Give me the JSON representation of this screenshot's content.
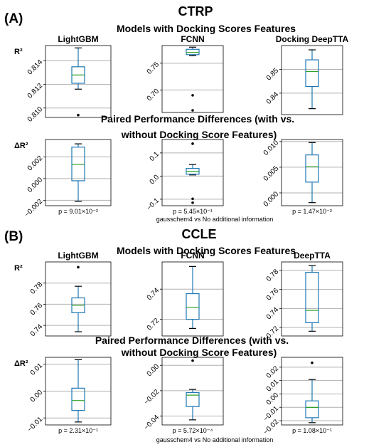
{
  "figure": {
    "sections": [
      {
        "label": "(A)",
        "dataset": "CTRP",
        "models_title": "Models with Docking Scores Features",
        "diff_title_line1": "Paired Performance Differences (with vs.",
        "diff_title_line2": "without Docking Score Features)",
        "comparison_note": "gausschem4 vs No additional information"
      },
      {
        "label": "(B)",
        "dataset": "CCLE",
        "models_title": "Models with Docking Scores Features",
        "diff_title_line1": "Paired Performance Differences (with vs.",
        "diff_title_line2": "without Docking Score Features)",
        "comparison_note": "gausschem4 vs No additional information"
      }
    ]
  },
  "chart_data": [
    {
      "type": "box",
      "section": "(A)",
      "row": "models",
      "panel_title": "LightGBM",
      "ylabel": "R²",
      "ylim": [
        0.8092,
        0.8153
      ],
      "yticks": [
        0.81,
        0.812,
        0.814
      ],
      "ytick_labels": [
        "0.810",
        "0.812",
        "0.814"
      ],
      "grid": true,
      "box": {
        "whislo": 0.8116,
        "q1": 0.8121,
        "med": 0.8128,
        "q3": 0.8135,
        "whishi": 0.8151,
        "fliers": [
          0.8094
        ]
      }
    },
    {
      "type": "box",
      "section": "(A)",
      "row": "models",
      "panel_title": "FCNN",
      "ylabel": "",
      "ylim": [
        0.658,
        0.783
      ],
      "yticks": [
        0.7,
        0.75
      ],
      "ytick_labels": [
        "0.70",
        "0.75"
      ],
      "grid": true,
      "box": {
        "whislo": 0.764,
        "q1": 0.766,
        "med": 0.77,
        "q3": 0.776,
        "whishi": 0.78,
        "fliers": [
          0.69,
          0.662
        ]
      }
    },
    {
      "type": "box",
      "section": "(A)",
      "row": "models",
      "panel_title": "Docking DeepTTA",
      "ylabel": "",
      "ylim": [
        0.831,
        0.86
      ],
      "yticks": [
        0.84,
        0.85
      ],
      "ytick_labels": [
        "0.84",
        "0.85"
      ],
      "grid": true,
      "box": {
        "whislo": 0.8335,
        "q1": 0.8428,
        "med": 0.8491,
        "q3": 0.854,
        "whishi": 0.8582,
        "fliers": []
      }
    },
    {
      "type": "box",
      "section": "(A)",
      "row": "diff",
      "panel_title": "",
      "ylabel": "ΔR²",
      "p_value": "p = 9.01×10⁻²",
      "ylim": [
        -0.0025,
        0.0036
      ],
      "yticks": [
        -0.002,
        0.0,
        0.002
      ],
      "ytick_labels": [
        "−0.002",
        "0.000",
        "0.002"
      ],
      "grid": true,
      "box": {
        "whislo": -0.0021,
        "q1": -0.0002,
        "med": 0.0013,
        "q3": 0.0029,
        "whishi": 0.0032,
        "fliers": []
      }
    },
    {
      "type": "box",
      "section": "(A)",
      "row": "diff",
      "panel_title": "",
      "ylabel": "",
      "p_value": "p = 5.45×10⁻¹",
      "ylim": [
        -0.128,
        0.158
      ],
      "yticks": [
        -0.1,
        0.0,
        0.1
      ],
      "ytick_labels": [
        "−0.1",
        "0.0",
        "0.1"
      ],
      "grid": true,
      "box": {
        "whislo": 0.005,
        "q1": 0.008,
        "med": 0.02,
        "q3": 0.033,
        "whishi": 0.05,
        "fliers": [
          0.14,
          -0.098,
          -0.115
        ]
      }
    },
    {
      "type": "box",
      "section": "(A)",
      "row": "diff",
      "panel_title": "",
      "ylabel": "",
      "p_value": "p = 1.47×10⁻²",
      "ylim": [
        -0.0025,
        0.0104
      ],
      "yticks": [
        0.0,
        0.005,
        0.01
      ],
      "ytick_labels": [
        "0.000",
        "0.005",
        "0.010"
      ],
      "grid": true,
      "box": {
        "whislo": -0.0019,
        "q1": 0.0021,
        "med": 0.0051,
        "q3": 0.0074,
        "whishi": 0.0098,
        "fliers": []
      }
    },
    {
      "type": "box",
      "section": "(B)",
      "row": "models",
      "panel_title": "LightGBM",
      "ylabel": "R²",
      "ylim": [
        0.73,
        0.8
      ],
      "yticks": [
        0.74,
        0.76,
        0.78
      ],
      "ytick_labels": [
        "0.74",
        "0.76",
        "0.78"
      ],
      "grid": true,
      "box": {
        "whislo": 0.734,
        "q1": 0.752,
        "med": 0.759,
        "q3": 0.766,
        "whishi": 0.777,
        "fliers": [
          0.795
        ]
      }
    },
    {
      "type": "box",
      "section": "(B)",
      "row": "models",
      "panel_title": "FCNN",
      "ylabel": "",
      "ylim": [
        0.709,
        0.758
      ],
      "yticks": [
        0.72,
        0.74
      ],
      "ytick_labels": [
        "0.72",
        "0.74"
      ],
      "grid": true,
      "box": {
        "whislo": 0.714,
        "q1": 0.72,
        "med": 0.728,
        "q3": 0.737,
        "whishi": 0.755,
        "fliers": []
      }
    },
    {
      "type": "box",
      "section": "(B)",
      "row": "models",
      "panel_title": "DeepTTA",
      "ylabel": "",
      "ylim": [
        0.711,
        0.789
      ],
      "yticks": [
        0.72,
        0.74,
        0.76,
        0.78
      ],
      "ytick_labels": [
        "0.72",
        "0.74",
        "0.76",
        "0.78"
      ],
      "grid": true,
      "box": {
        "whislo": 0.716,
        "q1": 0.725,
        "med": 0.738,
        "q3": 0.778,
        "whishi": 0.785,
        "fliers": []
      }
    },
    {
      "type": "box",
      "section": "(B)",
      "row": "diff",
      "panel_title": "",
      "ylabel": "ΔR²",
      "p_value": "p = 2.31×10⁻¹",
      "ylim": [
        -0.0126,
        0.0126
      ],
      "yticks": [
        -0.01,
        0.0,
        0.01
      ],
      "ytick_labels": [
        "−0.01",
        "0.00",
        "0.01"
      ],
      "grid": true,
      "box": {
        "whislo": -0.0115,
        "q1": -0.0072,
        "med": -0.0035,
        "q3": 0.0011,
        "whishi": 0.0117,
        "fliers": []
      }
    },
    {
      "type": "box",
      "section": "(B)",
      "row": "diff",
      "panel_title": "",
      "ylabel": "",
      "p_value": "p = 5.72×10⁻⁴",
      "ylim": [
        -0.047,
        0.0063
      ],
      "yticks": [
        -0.04,
        -0.02,
        0.0
      ],
      "ytick_labels": [
        "−0.04",
        "−0.02",
        "0.00"
      ],
      "grid": true,
      "box": {
        "whislo": -0.043,
        "q1": -0.0325,
        "med": -0.0235,
        "q3": -0.0215,
        "whishi": -0.019,
        "fliers": [
          0.0037
        ]
      }
    },
    {
      "type": "box",
      "section": "(B)",
      "row": "diff",
      "panel_title": "",
      "ylabel": "",
      "p_value": "p = 1.08×10⁻¹",
      "ylim": [
        -0.0232,
        0.0274
      ],
      "yticks": [
        -0.02,
        -0.01,
        0.0,
        0.01,
        0.02
      ],
      "ytick_labels": [
        "−0.02",
        "−0.01",
        "0.00",
        "0.01",
        "0.02"
      ],
      "grid": true,
      "box": {
        "whislo": -0.0215,
        "q1": -0.0178,
        "med": -0.0101,
        "q3": -0.0052,
        "whishi": 0.0108,
        "fliers": [
          0.0233
        ]
      }
    }
  ]
}
